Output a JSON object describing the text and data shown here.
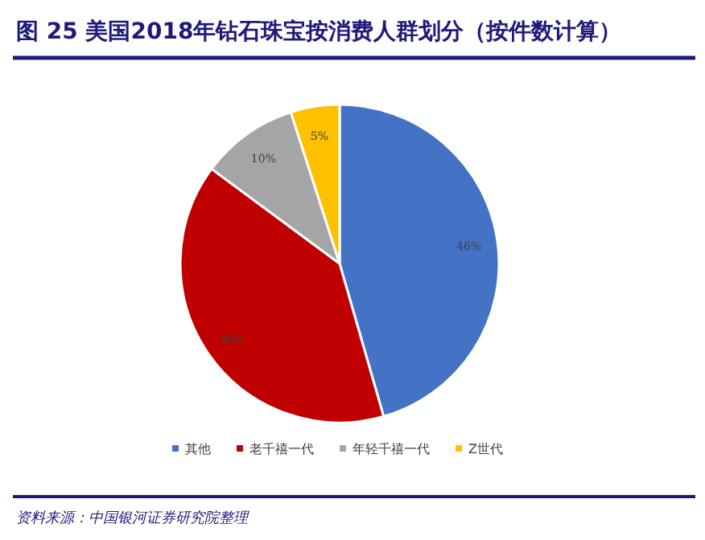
{
  "chart_data": {
    "type": "pie",
    "title": "图 25 美国2018年钻石珠宝按消费人群划分（按件数计算）",
    "categories": [
      "其他",
      "老千禧一代",
      "年轻千禧一代",
      "Z世代"
    ],
    "values": [
      46,
      40,
      10,
      5
    ],
    "colors": [
      "#4472c4",
      "#c00000",
      "#a5a5a5",
      "#ffc000"
    ],
    "value_labels": [
      "46%",
      "40%",
      "10%",
      "5%"
    ],
    "legend": "bottom",
    "annotations": [
      "资料来源：中国银河证券研究院整理"
    ]
  }
}
